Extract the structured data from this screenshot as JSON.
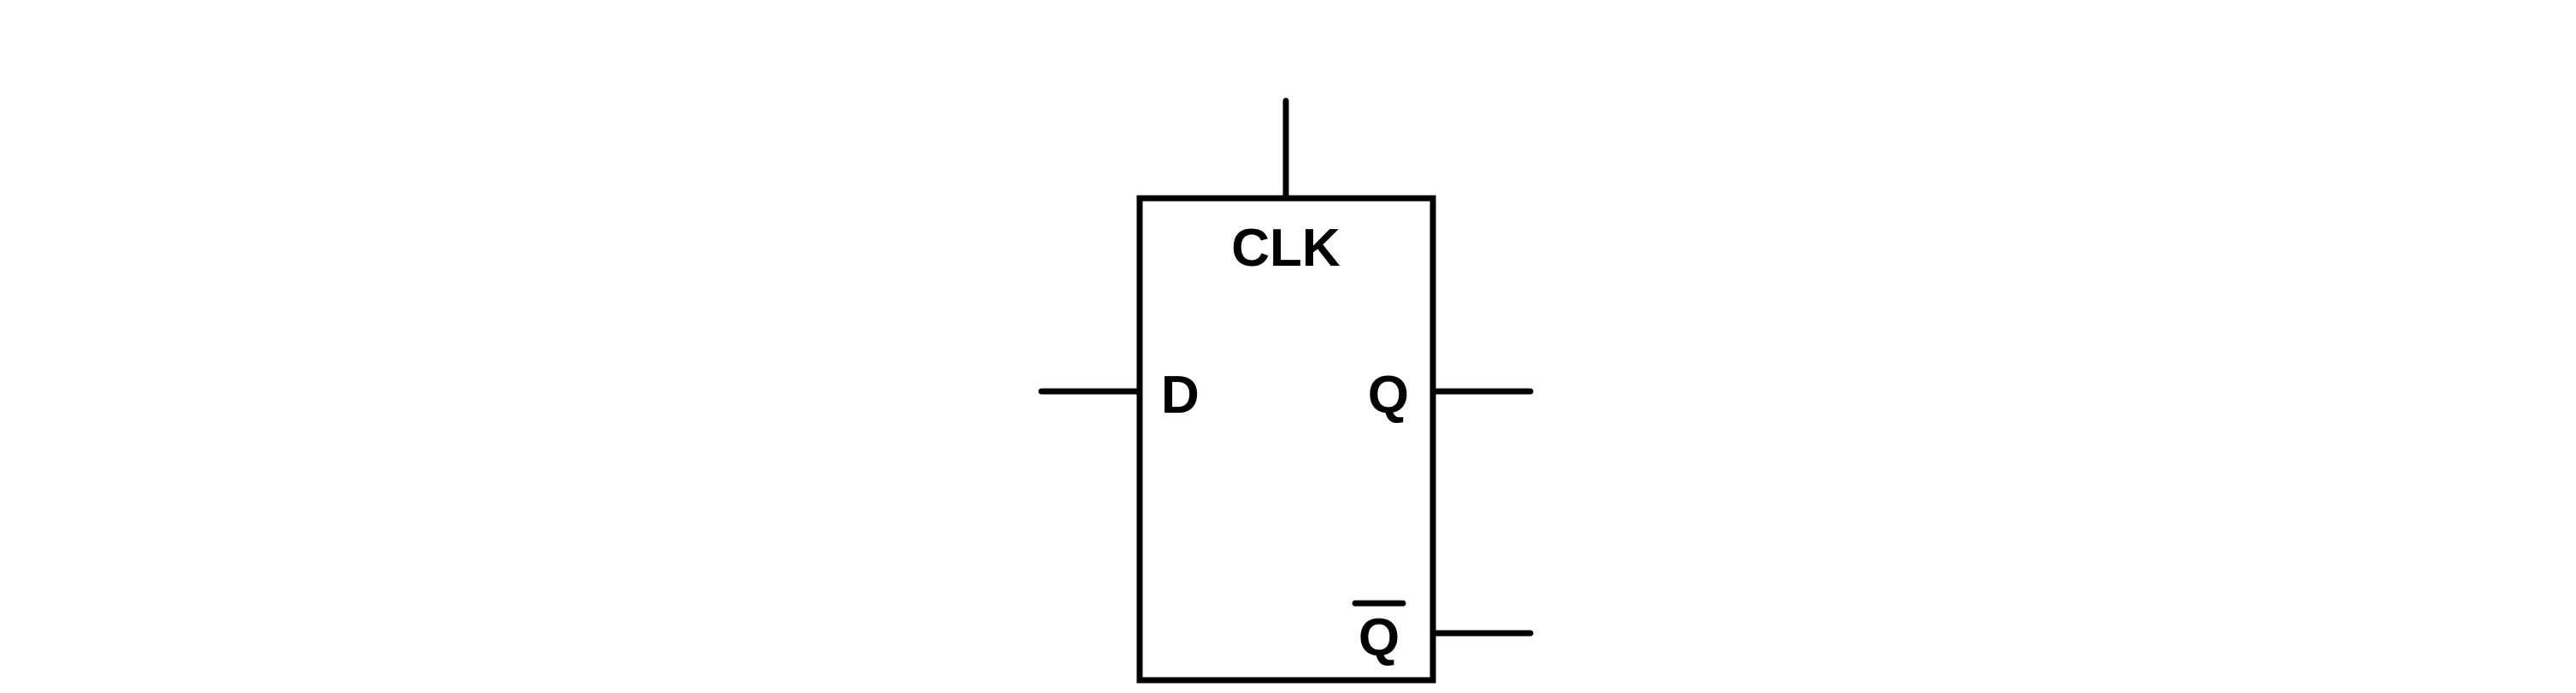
{
  "diagram": {
    "type": "d-flip-flop",
    "pins": {
      "clk": "CLK",
      "d": "D",
      "q": "Q",
      "q_bar": "Q"
    },
    "colors": {
      "stroke": "#000000",
      "background": "#ffffff"
    }
  }
}
